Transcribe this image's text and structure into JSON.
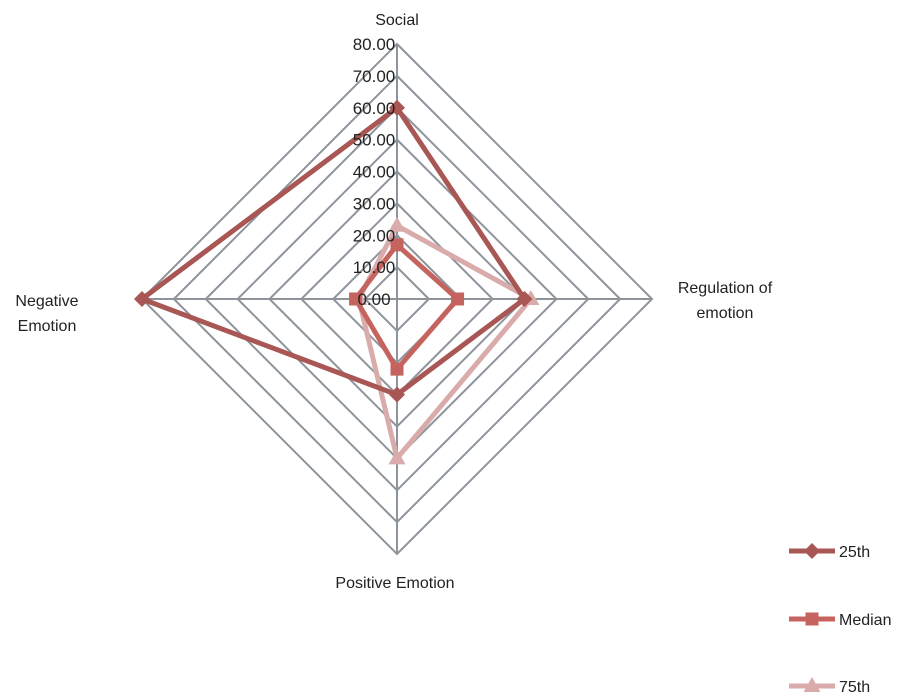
{
  "chart_data": {
    "type": "radar",
    "title": "",
    "axes": [
      "Social",
      "Regulation of emotion",
      "Positive Emotion",
      "Negative Emotion"
    ],
    "axis_label_lines": [
      [
        "Social"
      ],
      [
        "Regulation of",
        "emotion"
      ],
      [
        "Positive Emotion"
      ],
      [
        "Negative",
        "Emotion"
      ]
    ],
    "range": [
      0,
      80
    ],
    "step": 10,
    "tick_labels": [
      "0.00",
      "10.00",
      "20.00",
      "30.00",
      "40.00",
      "50.00",
      "60.00",
      "70.00",
      "80.00"
    ],
    "series": [
      {
        "name": "25th",
        "values": [
          60,
          40,
          30,
          80
        ],
        "color": "#A85754",
        "marker": "diamond"
      },
      {
        "name": "Median",
        "values": [
          17,
          19,
          22,
          13
        ],
        "color": "#C5635E",
        "marker": "square"
      },
      {
        "name": "75th",
        "values": [
          23,
          42,
          50,
          12
        ],
        "color": "#D9ACAB",
        "marker": "triangle"
      }
    ],
    "grid_color": "#8E949C",
    "legend_position": "bottom-right"
  }
}
